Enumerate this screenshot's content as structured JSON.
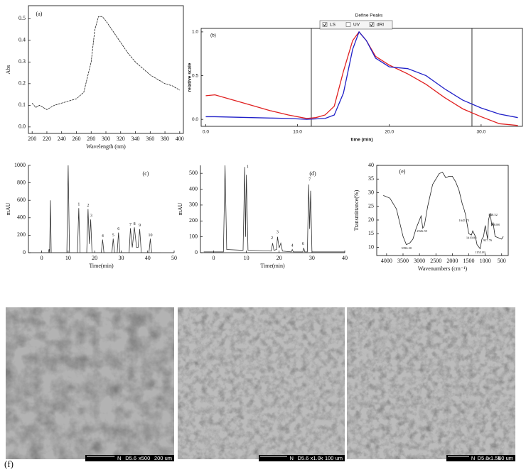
{
  "chart_data": [
    {
      "type": "line",
      "label": "(a)",
      "xlabel": "Wavelength (nm)",
      "ylabel": "Abs",
      "xlim": [
        195,
        405
      ],
      "ylim": [
        -0.03,
        0.56
      ],
      "xticks": [
        200,
        220,
        240,
        260,
        280,
        300,
        320,
        340,
        360,
        380,
        400
      ],
      "yticks": [
        {
          "value": 0,
          "label": "0.0"
        },
        0.1,
        0.2,
        0.3,
        0.4,
        0.5
      ],
      "x": [
        200,
        205,
        210,
        220,
        230,
        240,
        250,
        260,
        270,
        280,
        285,
        290,
        295,
        300,
        310,
        320,
        330,
        340,
        350,
        360,
        370,
        380,
        390,
        400
      ],
      "series": [
        {
          "color": "#222222",
          "dashed": true,
          "values": [
            0.11,
            0.09,
            0.1,
            0.08,
            0.1,
            0.11,
            0.12,
            0.13,
            0.16,
            0.3,
            0.45,
            0.51,
            0.51,
            0.49,
            0.44,
            0.39,
            0.34,
            0.3,
            0.27,
            0.24,
            0.22,
            0.2,
            0.19,
            0.17
          ]
        }
      ]
    },
    {
      "type": "line",
      "label": "(b)",
      "title": "Define Peaks",
      "xlabel": "time (min)",
      "ylabel": "relative scale",
      "xlim": [
        -0.5,
        34.5
      ],
      "ylim": [
        -0.08,
        1.04
      ],
      "xticks": [
        {
          "value": 0,
          "label": "0.0"
        },
        {
          "value": 10,
          "label": "10.0"
        },
        {
          "value": 20,
          "label": "20.0"
        },
        {
          "value": 30,
          "label": "30.0"
        }
      ],
      "yticks": [
        {
          "value": 0,
          "label": "0.0"
        },
        {
          "value": 0.5,
          "label": "0.5"
        },
        {
          "value": 1,
          "label": "1.0"
        }
      ],
      "vlines": [
        11.5,
        29
      ],
      "x": [
        0,
        1,
        3,
        5,
        7,
        9,
        11,
        12,
        13,
        14,
        15,
        16,
        16.7,
        17.5,
        18.5,
        20,
        22,
        24,
        26,
        28,
        30,
        32,
        34
      ],
      "series": [
        {
          "name": "LS",
          "color": "#e02020",
          "values": [
            0.27,
            0.28,
            0.22,
            0.16,
            0.1,
            0.05,
            0.01,
            0.02,
            0.05,
            0.15,
            0.55,
            0.9,
            1.0,
            0.9,
            0.72,
            0.62,
            0.52,
            0.4,
            0.25,
            0.12,
            0.03,
            -0.05,
            -0.07
          ]
        },
        {
          "name": "dRI",
          "color": "#2020c8",
          "values": [
            0.03,
            0.03,
            0.025,
            0.02,
            0.015,
            0.01,
            0.0,
            0.005,
            0.01,
            0.05,
            0.3,
            0.8,
            1.0,
            0.9,
            0.7,
            0.6,
            0.58,
            0.5,
            0.35,
            0.22,
            0.13,
            0.06,
            0.02
          ]
        }
      ],
      "inactive_series": [
        {
          "name": "UV"
        }
      ]
    },
    {
      "type": "line",
      "label": "(c)",
      "xlabel": "Time(min)",
      "ylabel": "mAU",
      "xlim": [
        -5,
        50
      ],
      "ylim": [
        0,
        1000
      ],
      "xticks": [
        0,
        10,
        20,
        30,
        40,
        50
      ],
      "yticks": [
        0,
        200,
        400,
        600,
        800,
        1000
      ],
      "x": [
        0,
        2.5,
        2.8,
        3.0,
        3.3,
        3.6,
        9.5,
        10,
        10.5,
        13.5,
        14,
        14.5,
        17,
        17.5,
        18,
        18.5,
        19,
        22.5,
        23,
        23.5,
        26.5,
        27,
        27.5,
        28.5,
        29,
        29.5,
        33,
        33.5,
        34.2,
        35,
        35.8,
        36.4,
        37,
        37.6,
        40.5,
        41,
        41.5,
        45
      ],
      "series": [
        {
          "color": "#333333",
          "values": [
            0,
            0,
            40,
            0,
            600,
            0,
            0,
            1000,
            0,
            0,
            510,
            0,
            0,
            500,
            100,
            380,
            0,
            0,
            150,
            0,
            0,
            160,
            0,
            0,
            230,
            0,
            0,
            280,
            60,
            290,
            60,
            60,
            270,
            0,
            0,
            160,
            0,
            0
          ]
        }
      ],
      "annotations": [
        {
          "text": "1",
          "x": 14,
          "y": 550
        },
        {
          "text": "2",
          "x": 17.5,
          "y": 540
        },
        {
          "text": "3",
          "x": 18.7,
          "y": 420
        },
        {
          "text": "4",
          "x": 23,
          "y": 190
        },
        {
          "text": "5",
          "x": 27,
          "y": 200
        },
        {
          "text": "6",
          "x": 29,
          "y": 270
        },
        {
          "text": "7",
          "x": 33.5,
          "y": 320
        },
        {
          "text": "8",
          "x": 35,
          "y": 330
        },
        {
          "text": "9",
          "x": 37,
          "y": 310
        },
        {
          "text": "10",
          "x": 41,
          "y": 200
        }
      ]
    },
    {
      "type": "line",
      "label": "(d)",
      "xlabel": "Time(min)",
      "ylabel": "mAU",
      "xlim": [
        -4,
        40
      ],
      "ylim": [
        0,
        550
      ],
      "xticks": [
        0,
        10,
        20,
        30,
        40
      ],
      "yticks": [
        0,
        100,
        200,
        300,
        400,
        500
      ],
      "x": [
        -3,
        3.0,
        3.5,
        4.0,
        9.0,
        9.5,
        9.75,
        10,
        10.5,
        17.6,
        18,
        18.4,
        19.2,
        19.5,
        20,
        20.5,
        21,
        23.7,
        24,
        24.3,
        27.2,
        27.5,
        27.8,
        28.6,
        29,
        29.3,
        29.6,
        30,
        40
      ],
      "series": [
        {
          "color": "#333333",
          "values": [
            5,
            5,
            550,
            20,
            15,
            540,
            100,
            490,
            15,
            10,
            60,
            15,
            20,
            100,
            30,
            60,
            10,
            5,
            20,
            5,
            5,
            30,
            5,
            5,
            430,
            150,
            390,
            5,
            5
          ]
        }
      ],
      "annotations": [
        {
          "text": "1",
          "x": 10.4,
          "y": 540
        },
        {
          "text": "2",
          "x": 17.8,
          "y": 90
        },
        {
          "text": "3",
          "x": 19.5,
          "y": 130
        },
        {
          "text": "4",
          "x": 24,
          "y": 45
        },
        {
          "text": "6",
          "x": 27.3,
          "y": 55
        },
        {
          "text": "7",
          "x": 29.3,
          "y": 460
        }
      ]
    },
    {
      "type": "line",
      "label": "(e)",
      "xlabel": "Wavenumbers (cm⁻¹)",
      "ylabel": "Transmittance(%)",
      "xlim": [
        4300,
        300
      ],
      "ylim": [
        7,
        40
      ],
      "xticks": [
        4000,
        3500,
        3000,
        2500,
        2000,
        1500,
        1000,
        500
      ],
      "yticks": [
        10,
        15,
        20,
        25,
        30,
        35,
        40
      ],
      "x": [
        4100,
        3900,
        3700,
        3500,
        3400,
        3300,
        3200,
        3100,
        2950,
        2900,
        2850,
        2750,
        2600,
        2400,
        2300,
        2200,
        2100,
        2000,
        1900,
        1800,
        1700,
        1645,
        1600,
        1500,
        1420,
        1380,
        1300,
        1250,
        1155,
        1100,
        1050,
        1000,
        927,
        900,
        850,
        800,
        760,
        700,
        600,
        500,
        450
      ],
      "series": [
        {
          "color": "#222222",
          "values": [
            29,
            28,
            24,
            14,
            11,
            11.5,
            13,
            17,
            21.5,
            17,
            18,
            25,
            33,
            37,
            37.5,
            35.5,
            36,
            36,
            34,
            31,
            26,
            24,
            22,
            15,
            14.5,
            16,
            14,
            11,
            9.5,
            13,
            14,
            18,
            13,
            20,
            22.5,
            18,
            19,
            14,
            13.5,
            13,
            14
          ]
        }
      ],
      "annotations": [
        {
          "text": "3396.30",
          "x": 3396,
          "y": 9.6
        },
        {
          "text": "2926.59",
          "x": 2926,
          "y": 15.8
        },
        {
          "text": "1645.73",
          "x": 1645,
          "y": 19.8
        },
        {
          "text": "1419.83",
          "x": 1419,
          "y": 13.4
        },
        {
          "text": "1155.09",
          "x": 1155,
          "y": 8.0
        },
        {
          "text": "927.76",
          "x": 927,
          "y": 12.4
        },
        {
          "text": "848.52",
          "x": 760,
          "y": 21.8
        },
        {
          "text": "768.88",
          "x": 700,
          "y": 18.2
        }
      ]
    }
  ],
  "figure_f": {
    "label": "(f)",
    "images": [
      {
        "detector": "N",
        "setting": "D5.6",
        "magnification": "x500",
        "scale": "200 um"
      },
      {
        "detector": "N",
        "setting": "D5.6",
        "magnification": "x1.0k",
        "scale": "100 um"
      },
      {
        "detector": "N",
        "setting": "D5.6",
        "magnification": "x1.5k",
        "scale": "50 um"
      }
    ]
  }
}
